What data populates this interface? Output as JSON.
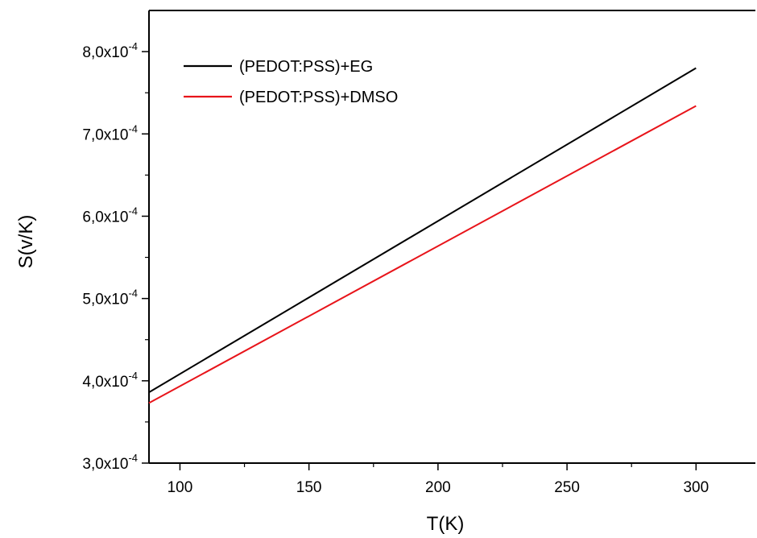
{
  "chart_data": {
    "type": "line",
    "xlabel": "T(K)",
    "ylabel": "S(v/K)",
    "xlim": [
      88,
      323
    ],
    "ylim": [
      0.0003,
      0.00085
    ],
    "x_ticks": [
      100,
      150,
      200,
      250,
      300
    ],
    "x_tick_labels": [
      "100",
      "150",
      "200",
      "250",
      "300"
    ],
    "y_ticks": [
      0.0003,
      0.0004,
      0.0005,
      0.0006,
      0.0007,
      0.0008
    ],
    "y_tick_labels": [
      {
        "mantissa": "3,0x10",
        "exponent": "-4"
      },
      {
        "mantissa": "4,0x10",
        "exponent": "-4"
      },
      {
        "mantissa": "5,0x10",
        "exponent": "-4"
      },
      {
        "mantissa": "6,0x10",
        "exponent": "-4"
      },
      {
        "mantissa": "7,0x10",
        "exponent": "-4"
      },
      {
        "mantissa": "8,0x10",
        "exponent": "-4"
      }
    ],
    "grid": false,
    "legend_position": "top-left",
    "series": [
      {
        "name": "(PEDOT:PSS)+EG",
        "color": "#000000",
        "x": [
          88,
          300
        ],
        "y": [
          0.000386,
          0.00078
        ]
      },
      {
        "name": "(PEDOT:PSS)+DMSO",
        "color": "#e8141a",
        "x": [
          88,
          300
        ],
        "y": [
          0.000373,
          0.000734
        ]
      }
    ]
  }
}
